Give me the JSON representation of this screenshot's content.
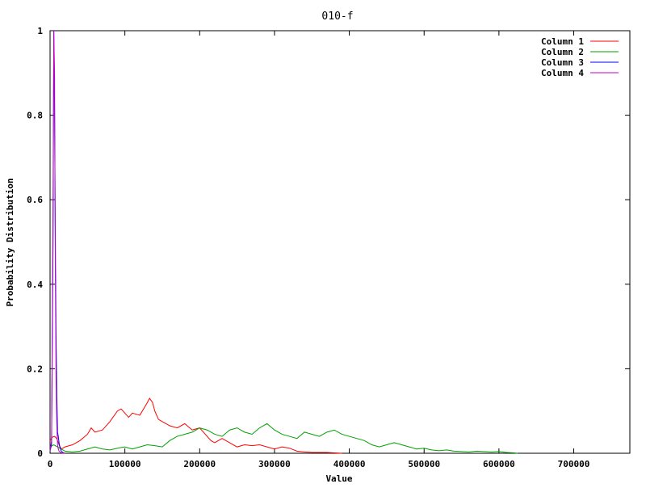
{
  "chart_data": {
    "type": "line",
    "title": "010-f",
    "xlabel": "Value",
    "ylabel": "Probability Distribution",
    "xlim": [
      0,
      775000
    ],
    "ylim": [
      0,
      1
    ],
    "xticks": [
      0,
      100000,
      200000,
      300000,
      400000,
      500000,
      600000,
      700000
    ],
    "xtick_labels": [
      "0",
      "100000",
      "200000",
      "300000",
      "400000",
      "500000",
      "600000",
      "700000"
    ],
    "yticks": [
      0,
      0.2,
      0.4,
      0.6,
      0.8,
      1
    ],
    "ytick_labels": [
      "0",
      "0.2",
      "0.4",
      "0.6",
      "0.8",
      "1"
    ],
    "grid": false,
    "legend_position": "top-right",
    "series": [
      {
        "name": "Column 1",
        "color": "#ff0000",
        "x": [
          0,
          3000,
          6000,
          9000,
          12000,
          15000,
          20000,
          30000,
          40000,
          50000,
          55000,
          60000,
          70000,
          80000,
          90000,
          95000,
          100000,
          105000,
          110000,
          120000,
          125000,
          130000,
          133000,
          137000,
          140000,
          145000,
          150000,
          160000,
          170000,
          180000,
          190000,
          200000,
          205000,
          210000,
          215000,
          220000,
          225000,
          230000,
          240000,
          250000,
          260000,
          270000,
          280000,
          290000,
          300000,
          310000,
          320000,
          330000,
          340000,
          350000,
          360000,
          370000,
          380000,
          390000
        ],
        "y": [
          0.03,
          0.038,
          0.04,
          0.035,
          0.02,
          0.01,
          0.015,
          0.02,
          0.03,
          0.045,
          0.06,
          0.05,
          0.055,
          0.075,
          0.1,
          0.105,
          0.095,
          0.085,
          0.095,
          0.09,
          0.105,
          0.12,
          0.13,
          0.12,
          0.1,
          0.08,
          0.075,
          0.065,
          0.06,
          0.07,
          0.055,
          0.06,
          0.05,
          0.04,
          0.03,
          0.025,
          0.03,
          0.035,
          0.025,
          0.015,
          0.02,
          0.018,
          0.02,
          0.015,
          0.01,
          0.015,
          0.012,
          0.005,
          0.003,
          0.002,
          0.002,
          0.002,
          0.001,
          0
        ]
      },
      {
        "name": "Column 2",
        "color": "#00a000",
        "x": [
          0,
          5000,
          10000,
          15000,
          20000,
          30000,
          40000,
          50000,
          60000,
          70000,
          80000,
          90000,
          100000,
          110000,
          120000,
          130000,
          140000,
          150000,
          160000,
          170000,
          180000,
          190000,
          200000,
          210000,
          220000,
          230000,
          240000,
          250000,
          260000,
          270000,
          280000,
          290000,
          300000,
          310000,
          320000,
          330000,
          340000,
          350000,
          360000,
          370000,
          380000,
          390000,
          400000,
          410000,
          420000,
          430000,
          440000,
          450000,
          460000,
          470000,
          480000,
          490000,
          500000,
          510000,
          520000,
          530000,
          540000,
          550000,
          560000,
          570000,
          580000,
          590000,
          600000,
          610000,
          620000,
          625000
        ],
        "y": [
          0.015,
          0.02,
          0.015,
          0.01,
          0.005,
          0.003,
          0.005,
          0.01,
          0.015,
          0.01,
          0.008,
          0.012,
          0.015,
          0.01,
          0.015,
          0.02,
          0.018,
          0.015,
          0.03,
          0.04,
          0.045,
          0.05,
          0.06,
          0.055,
          0.045,
          0.04,
          0.055,
          0.06,
          0.05,
          0.045,
          0.06,
          0.07,
          0.055,
          0.045,
          0.04,
          0.035,
          0.05,
          0.045,
          0.04,
          0.05,
          0.055,
          0.045,
          0.04,
          0.035,
          0.03,
          0.02,
          0.015,
          0.02,
          0.025,
          0.02,
          0.015,
          0.01,
          0.012,
          0.008,
          0.006,
          0.008,
          0.005,
          0.004,
          0.003,
          0.005,
          0.004,
          0.003,
          0.004,
          0.002,
          0.001,
          0
        ]
      },
      {
        "name": "Column 3",
        "color": "#0000ff",
        "x": [
          0,
          2000,
          4000,
          5000,
          6000,
          7000,
          8000,
          9000,
          10000,
          11000,
          12000,
          13000,
          14000,
          15000,
          17000,
          20000
        ],
        "y": [
          0.005,
          0.02,
          0.5,
          1.0,
          0.82,
          0.51,
          0.28,
          0.14,
          0.05,
          0.04,
          0.025,
          0.015,
          0.01,
          0.005,
          0.002,
          0
        ]
      },
      {
        "name": "Column 4",
        "color": "#c000c0",
        "x": [
          0,
          2000,
          4000,
          5000,
          6000,
          7000,
          8000,
          9000,
          10000,
          11000,
          12000,
          14000,
          16000,
          20000
        ],
        "y": [
          0.005,
          0.03,
          0.6,
          1.0,
          0.9,
          0.44,
          0.18,
          0.07,
          0.02,
          0.01,
          0.005,
          0.002,
          0.001,
          0
        ]
      }
    ]
  }
}
